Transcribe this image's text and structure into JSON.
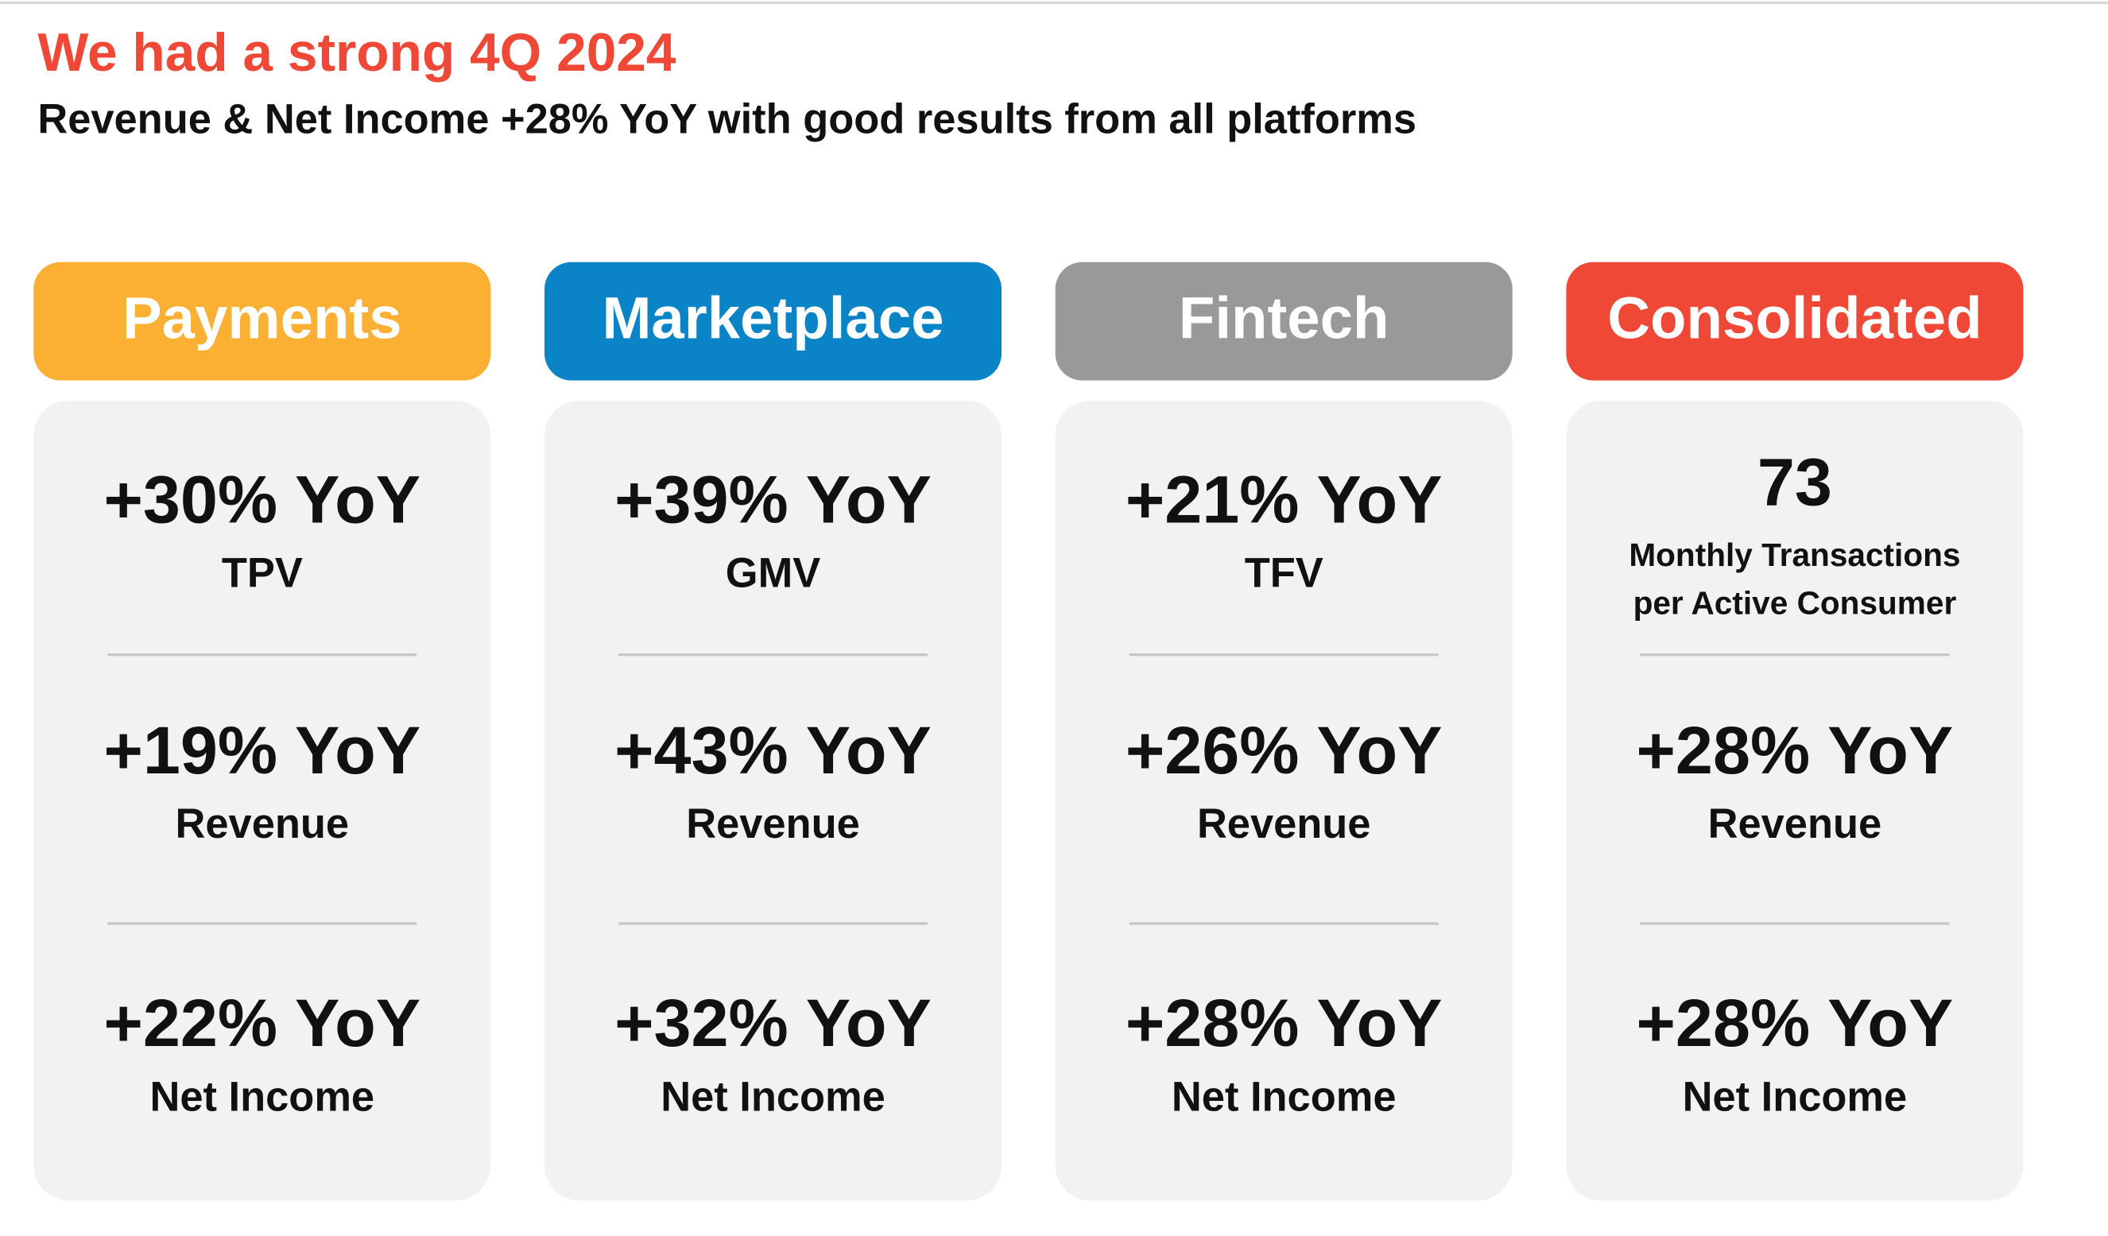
{
  "header": {
    "title": "We had a strong 4Q 2024",
    "subtitle": "Revenue & Net Income +28% YoY with good results from all platforms"
  },
  "columns": [
    {
      "name": "Payments",
      "color": "#fbb034",
      "metrics": [
        {
          "value": "+30% YoY",
          "label_lines": [
            "TPV"
          ]
        },
        {
          "value": "+19% YoY",
          "label_lines": [
            "Revenue"
          ]
        },
        {
          "value": "+22% YoY",
          "label_lines": [
            "Net Income"
          ]
        }
      ]
    },
    {
      "name": "Marketplace",
      "color": "#0a84c6",
      "metrics": [
        {
          "value": "+39% YoY",
          "label_lines": [
            "GMV"
          ]
        },
        {
          "value": "+43% YoY",
          "label_lines": [
            "Revenue"
          ]
        },
        {
          "value": "+32% YoY",
          "label_lines": [
            "Net Income"
          ]
        }
      ]
    },
    {
      "name": "Fintech",
      "color": "#999999",
      "metrics": [
        {
          "value": "+21% YoY",
          "label_lines": [
            "TFV"
          ]
        },
        {
          "value": "+26% YoY",
          "label_lines": [
            "Revenue"
          ]
        },
        {
          "value": "+28% YoY",
          "label_lines": [
            "Net Income"
          ]
        }
      ]
    },
    {
      "name": "Consolidated",
      "color": "#ef4836",
      "metrics": [
        {
          "value": "73",
          "label_lines": [
            "Monthly Transactions",
            "per Active Consumer"
          ]
        },
        {
          "value": "+28% YoY",
          "label_lines": [
            "Revenue"
          ]
        },
        {
          "value": "+28% YoY",
          "label_lines": [
            "Net Income"
          ]
        }
      ]
    }
  ]
}
